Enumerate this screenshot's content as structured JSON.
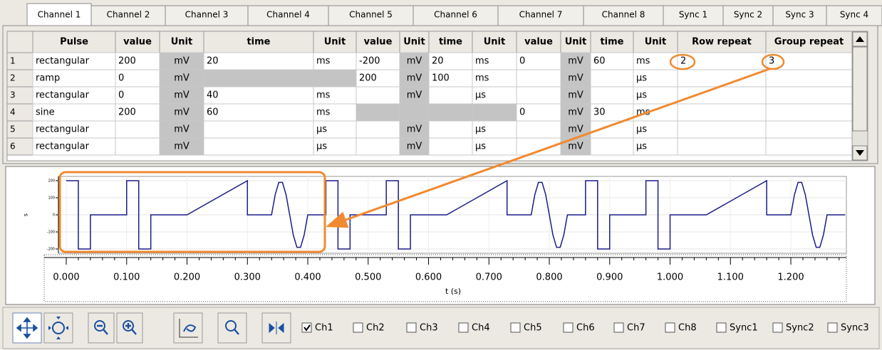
{
  "tabs": [
    {
      "label": "Channel 1",
      "selected": true
    },
    {
      "label": "Channel 2",
      "selected": false
    },
    {
      "label": "Channel 3",
      "selected": false
    },
    {
      "label": "Channel 4",
      "selected": false
    },
    {
      "label": "Channel 5",
      "selected": false
    },
    {
      "label": "Channel 6",
      "selected": false
    },
    {
      "label": "Channel 7",
      "selected": false
    },
    {
      "label": "Channel 8",
      "selected": false
    },
    {
      "label": "Sync 1",
      "selected": false
    },
    {
      "label": "Sync 2",
      "selected": false
    },
    {
      "label": "Sync 3",
      "selected": false
    },
    {
      "label": "Sync 4",
      "selected": false
    }
  ],
  "table": {
    "headers": [
      "Pulse",
      "value",
      "Unit",
      "time",
      "Unit",
      "value",
      "Unit",
      "time",
      "Unit",
      "value",
      "Unit",
      "time",
      "Unit",
      "Row repeat",
      "Group repeat"
    ],
    "rows": [
      {
        "label": "1",
        "cells": [
          "rectangular",
          "200",
          "mV",
          "20",
          "ms",
          "-200",
          "mV",
          "20",
          "ms",
          "0",
          "mV",
          "60",
          "ms",
          "2",
          "3"
        ]
      },
      {
        "label": "2",
        "cells": [
          "ramp",
          "0",
          "mV",
          null,
          null,
          "200",
          "mV",
          "100",
          "ms",
          null,
          "mV",
          null,
          "µs",
          null,
          null
        ]
      },
      {
        "label": "3",
        "cells": [
          "rectangular",
          "0",
          "mV",
          "40",
          "ms",
          null,
          "mV",
          null,
          "µs",
          null,
          "mV",
          null,
          "µs",
          null,
          null
        ]
      },
      {
        "label": "4",
        "cells": [
          "sine",
          "200",
          "mV",
          "60",
          "ms",
          null,
          null,
          null,
          null,
          "0",
          "mV",
          "30",
          "ms",
          null,
          null
        ]
      },
      {
        "label": "5",
        "cells": [
          "rectangular",
          null,
          "mV",
          null,
          "µs",
          null,
          "mV",
          null,
          "µs",
          null,
          "mV",
          null,
          "µs",
          null,
          null
        ]
      },
      {
        "label": "6",
        "cells": [
          "rectangular",
          null,
          "mV",
          null,
          "µs",
          null,
          "mV",
          null,
          "µs",
          null,
          "mV",
          null,
          "µs",
          null,
          null
        ]
      }
    ]
  },
  "chart_data": {
    "type": "line",
    "x_label": "t (s)",
    "y_label": "s",
    "color": "#1c1c8c",
    "grid": true,
    "xlim": [
      -0.013,
      1.292
    ],
    "xticks": [
      {
        "value": 0,
        "label": "0.000"
      },
      {
        "value": 0.1,
        "label": "0.100"
      },
      {
        "value": 0.2,
        "label": "0.200"
      },
      {
        "value": 0.3,
        "label": "0.300"
      },
      {
        "value": 0.4,
        "label": "0.400"
      },
      {
        "value": 0.5,
        "label": "0.500"
      },
      {
        "value": 0.6,
        "label": "0.600"
      },
      {
        "value": 0.7,
        "label": "0.700"
      },
      {
        "value": 0.8,
        "label": "0.800"
      },
      {
        "value": 0.9,
        "label": "0.900"
      },
      {
        "value": 1.0,
        "label": "1.000"
      },
      {
        "value": 1.1,
        "label": "1.100"
      },
      {
        "value": 1.2,
        "label": "1.200"
      }
    ],
    "ylim": [
      -225,
      225
    ],
    "yticks": [
      200,
      100,
      0,
      -100,
      -200
    ],
    "x": [
      0,
      0.02,
      0.02,
      0.04,
      0.04,
      0.1,
      0.1,
      0.12,
      0.12,
      0.14,
      0.14,
      0.2,
      0.3,
      0.3,
      0.34,
      0.346,
      0.352,
      0.358,
      0.364,
      0.37,
      0.376,
      0.382,
      0.388,
      0.394,
      0.4,
      0.43,
      0.43,
      0.45,
      0.45,
      0.47,
      0.47,
      0.53,
      0.53,
      0.55,
      0.55,
      0.57,
      0.57,
      0.63,
      0.73,
      0.73,
      0.77,
      0.776,
      0.782,
      0.788,
      0.794,
      0.8,
      0.806,
      0.812,
      0.818,
      0.824,
      0.83,
      0.86,
      0.86,
      0.88,
      0.88,
      0.9,
      0.9,
      0.96,
      0.96,
      0.98,
      0.98,
      1,
      1,
      1.06,
      1.16,
      1.16,
      1.2,
      1.206,
      1.212,
      1.218,
      1.224,
      1.23,
      1.236,
      1.242,
      1.248,
      1.254,
      1.26,
      1.29
    ],
    "values": [
      200,
      200,
      -200,
      -200,
      0,
      0,
      200,
      200,
      -200,
      -200,
      0,
      0,
      200,
      0,
      0,
      118,
      190,
      190,
      118,
      0,
      -118,
      -190,
      -190,
      -118,
      0,
      0,
      200,
      200,
      -200,
      -200,
      0,
      0,
      200,
      200,
      -200,
      -200,
      0,
      0,
      200,
      0,
      0,
      118,
      190,
      190,
      118,
      0,
      -118,
      -190,
      -190,
      -118,
      0,
      0,
      200,
      200,
      -200,
      -200,
      0,
      0,
      200,
      200,
      -200,
      -200,
      0,
      0,
      200,
      0,
      0,
      118,
      190,
      190,
      118,
      0,
      -118,
      -190,
      -190,
      -118,
      0,
      0
    ]
  },
  "toolbar": {
    "checkboxes": [
      {
        "label": "Ch1",
        "checked": true
      },
      {
        "label": "Ch2",
        "checked": false
      },
      {
        "label": "Ch3",
        "checked": false
      },
      {
        "label": "Ch4",
        "checked": false
      },
      {
        "label": "Ch5",
        "checked": false
      },
      {
        "label": "Ch6",
        "checked": false
      },
      {
        "label": "Ch7",
        "checked": false
      },
      {
        "label": "Ch8",
        "checked": false
      },
      {
        "label": "Sync1",
        "checked": false
      },
      {
        "label": "Sync2",
        "checked": false
      },
      {
        "label": "Sync3",
        "checked": false
      }
    ]
  }
}
